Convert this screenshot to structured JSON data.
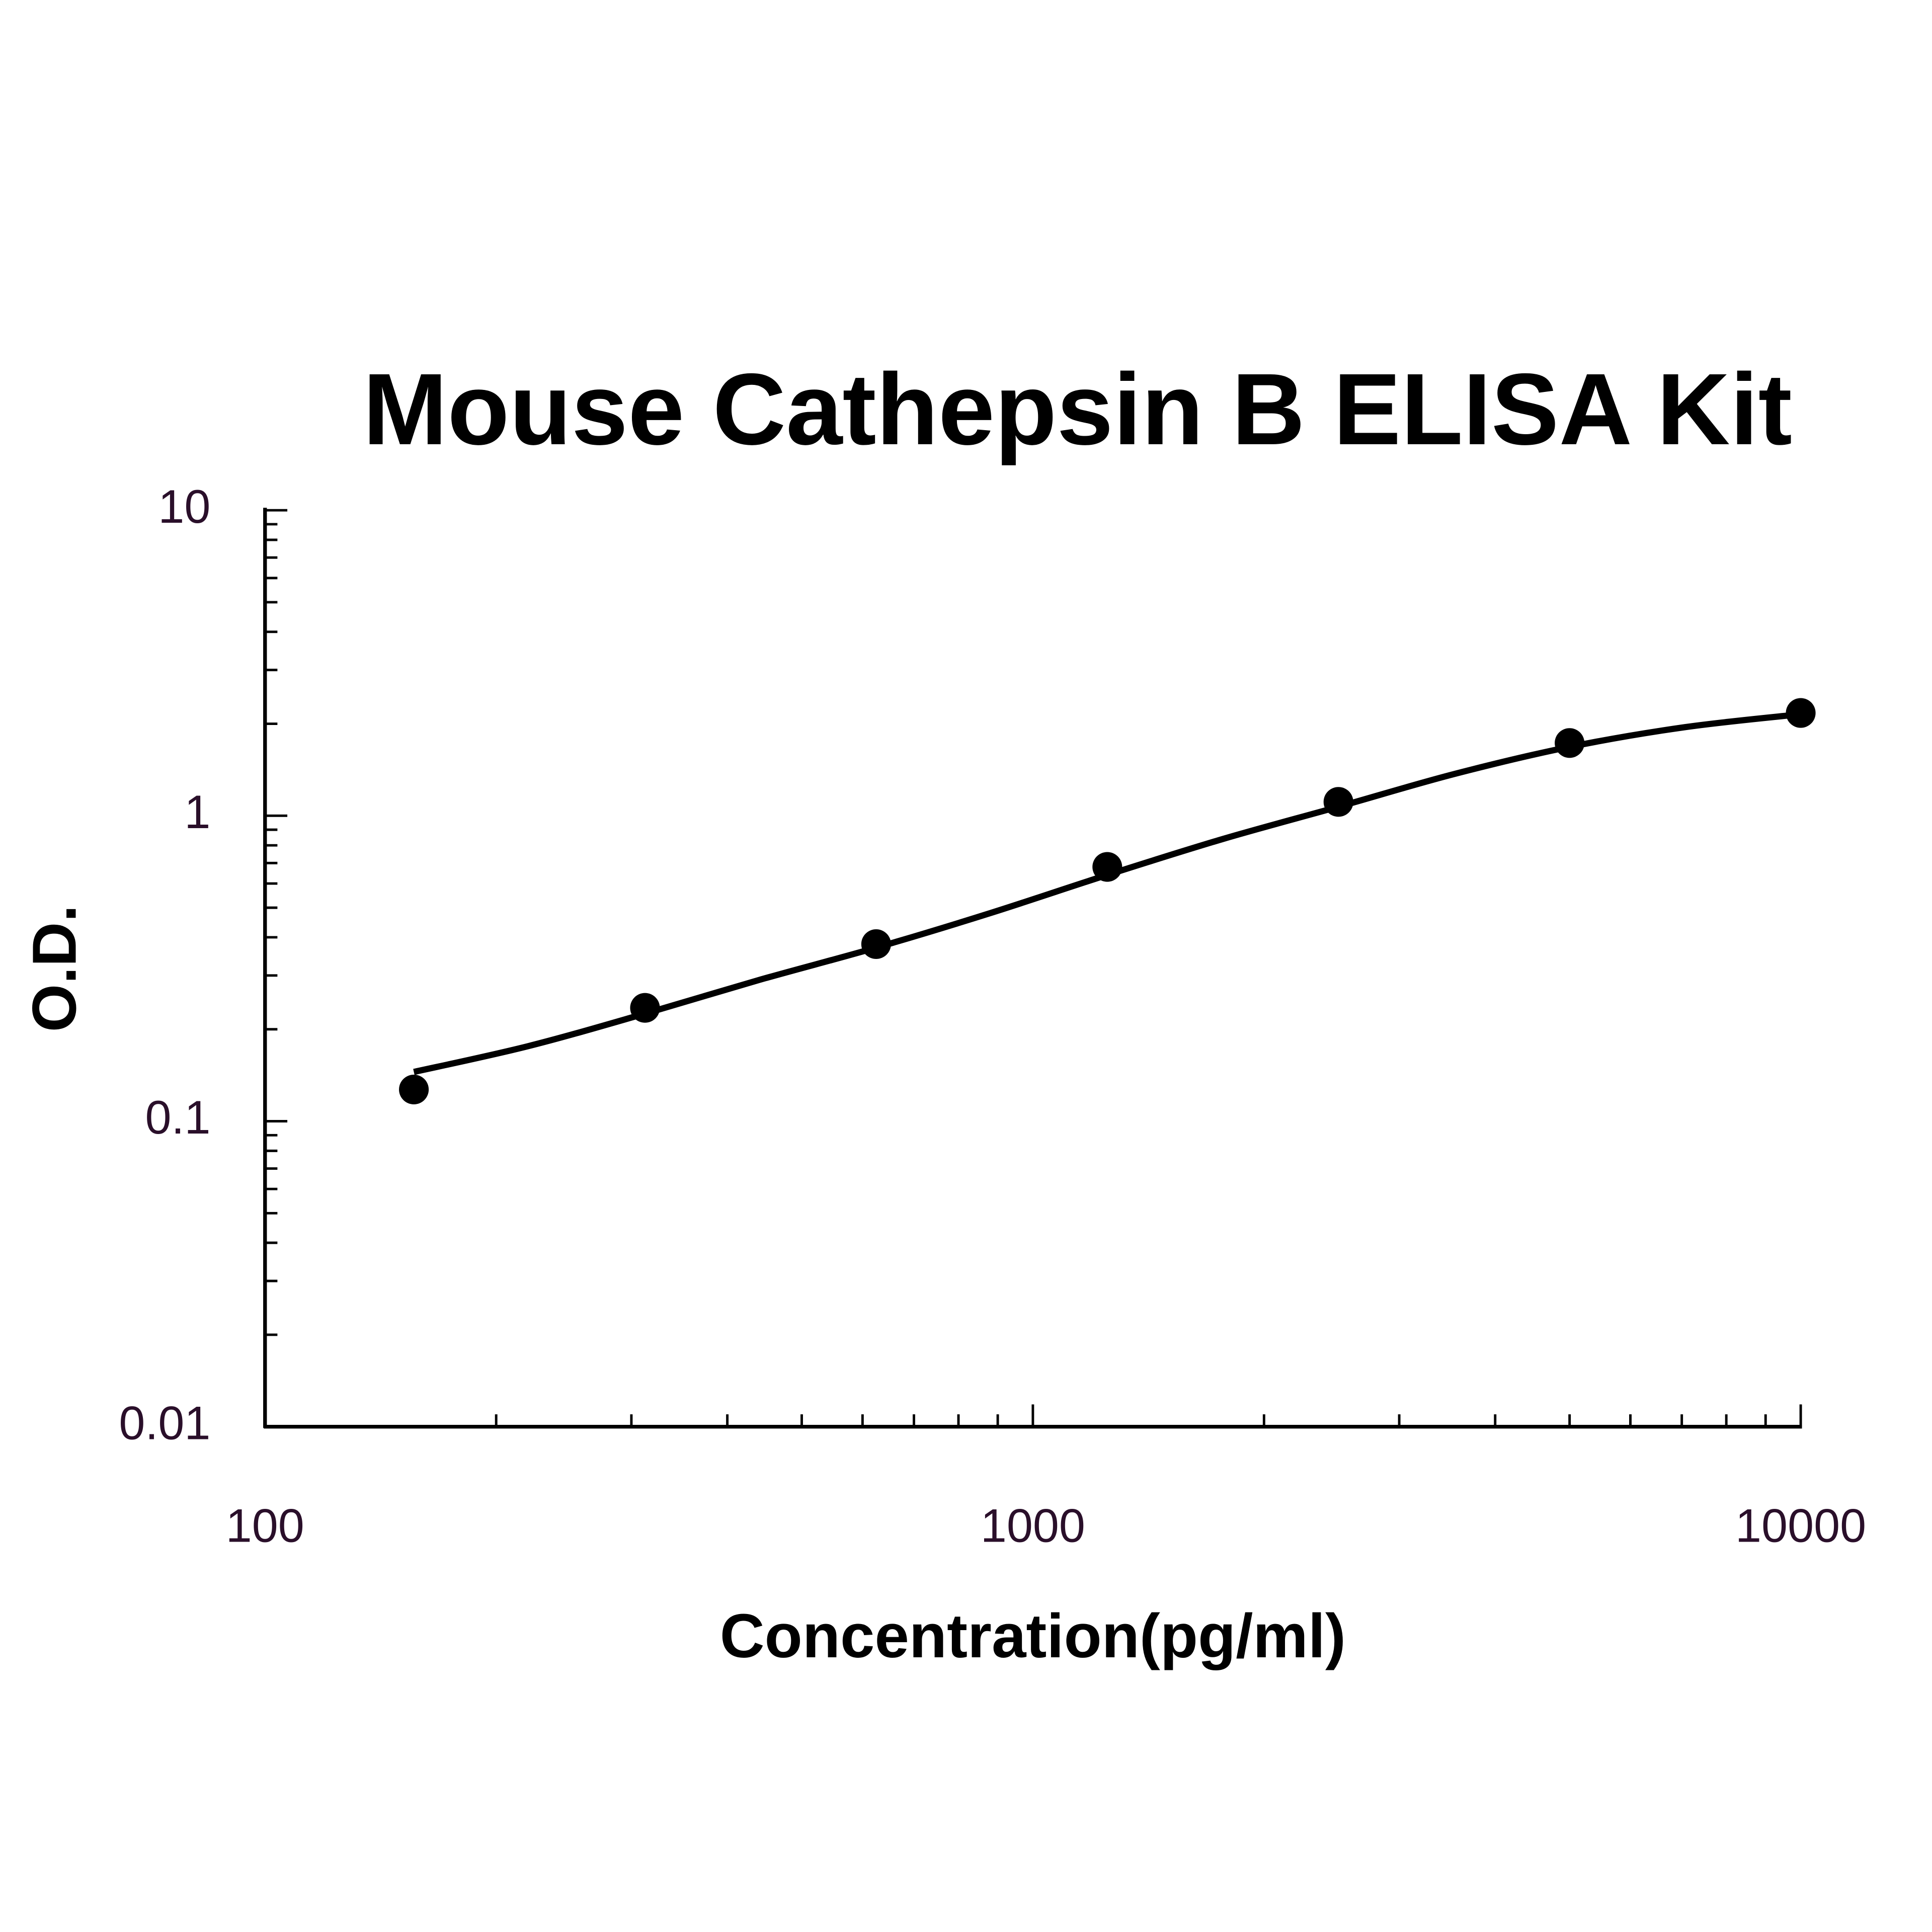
{
  "chart_data": {
    "type": "scatter",
    "title": "Mouse Cathepsin B ELISA Kit",
    "x_label": "Concentration(pg/ml)",
    "y_label": "O.D.",
    "x_scale": "log",
    "y_scale": "log",
    "xlim": [
      100,
      10000
    ],
    "ylim": [
      0.01,
      10
    ],
    "xticks": [
      100,
      1000,
      10000
    ],
    "yticks": [
      0.01,
      0.1,
      1,
      10
    ],
    "xminorticks": [
      200,
      300,
      400,
      500,
      600,
      700,
      800,
      900,
      2000,
      3000,
      4000,
      5000,
      6000,
      7000,
      8000,
      9000
    ],
    "yminorticks": [
      0.02,
      0.03,
      0.04,
      0.05,
      0.06,
      0.07,
      0.08,
      0.09,
      0.2,
      0.3,
      0.4,
      0.5,
      0.6,
      0.7,
      0.8,
      0.9,
      2,
      3,
      4,
      5,
      6,
      7,
      8,
      9
    ],
    "color": "#000000",
    "x": [
      156.25,
      312.5,
      625,
      1250,
      2500,
      5000,
      10000
    ],
    "values": [
      0.127,
      0.235,
      0.38,
      0.68,
      1.11,
      1.73,
      2.17
    ],
    "curve": {
      "x": [
        156.25,
        220,
        312.5,
        440,
        625,
        880,
        1250,
        1770,
        2500,
        3540,
        5000,
        7070,
        10000
      ],
      "values": [
        0.145,
        0.176,
        0.225,
        0.29,
        0.37,
        0.48,
        0.64,
        0.84,
        1.07,
        1.37,
        1.68,
        1.95,
        2.15
      ]
    }
  }
}
